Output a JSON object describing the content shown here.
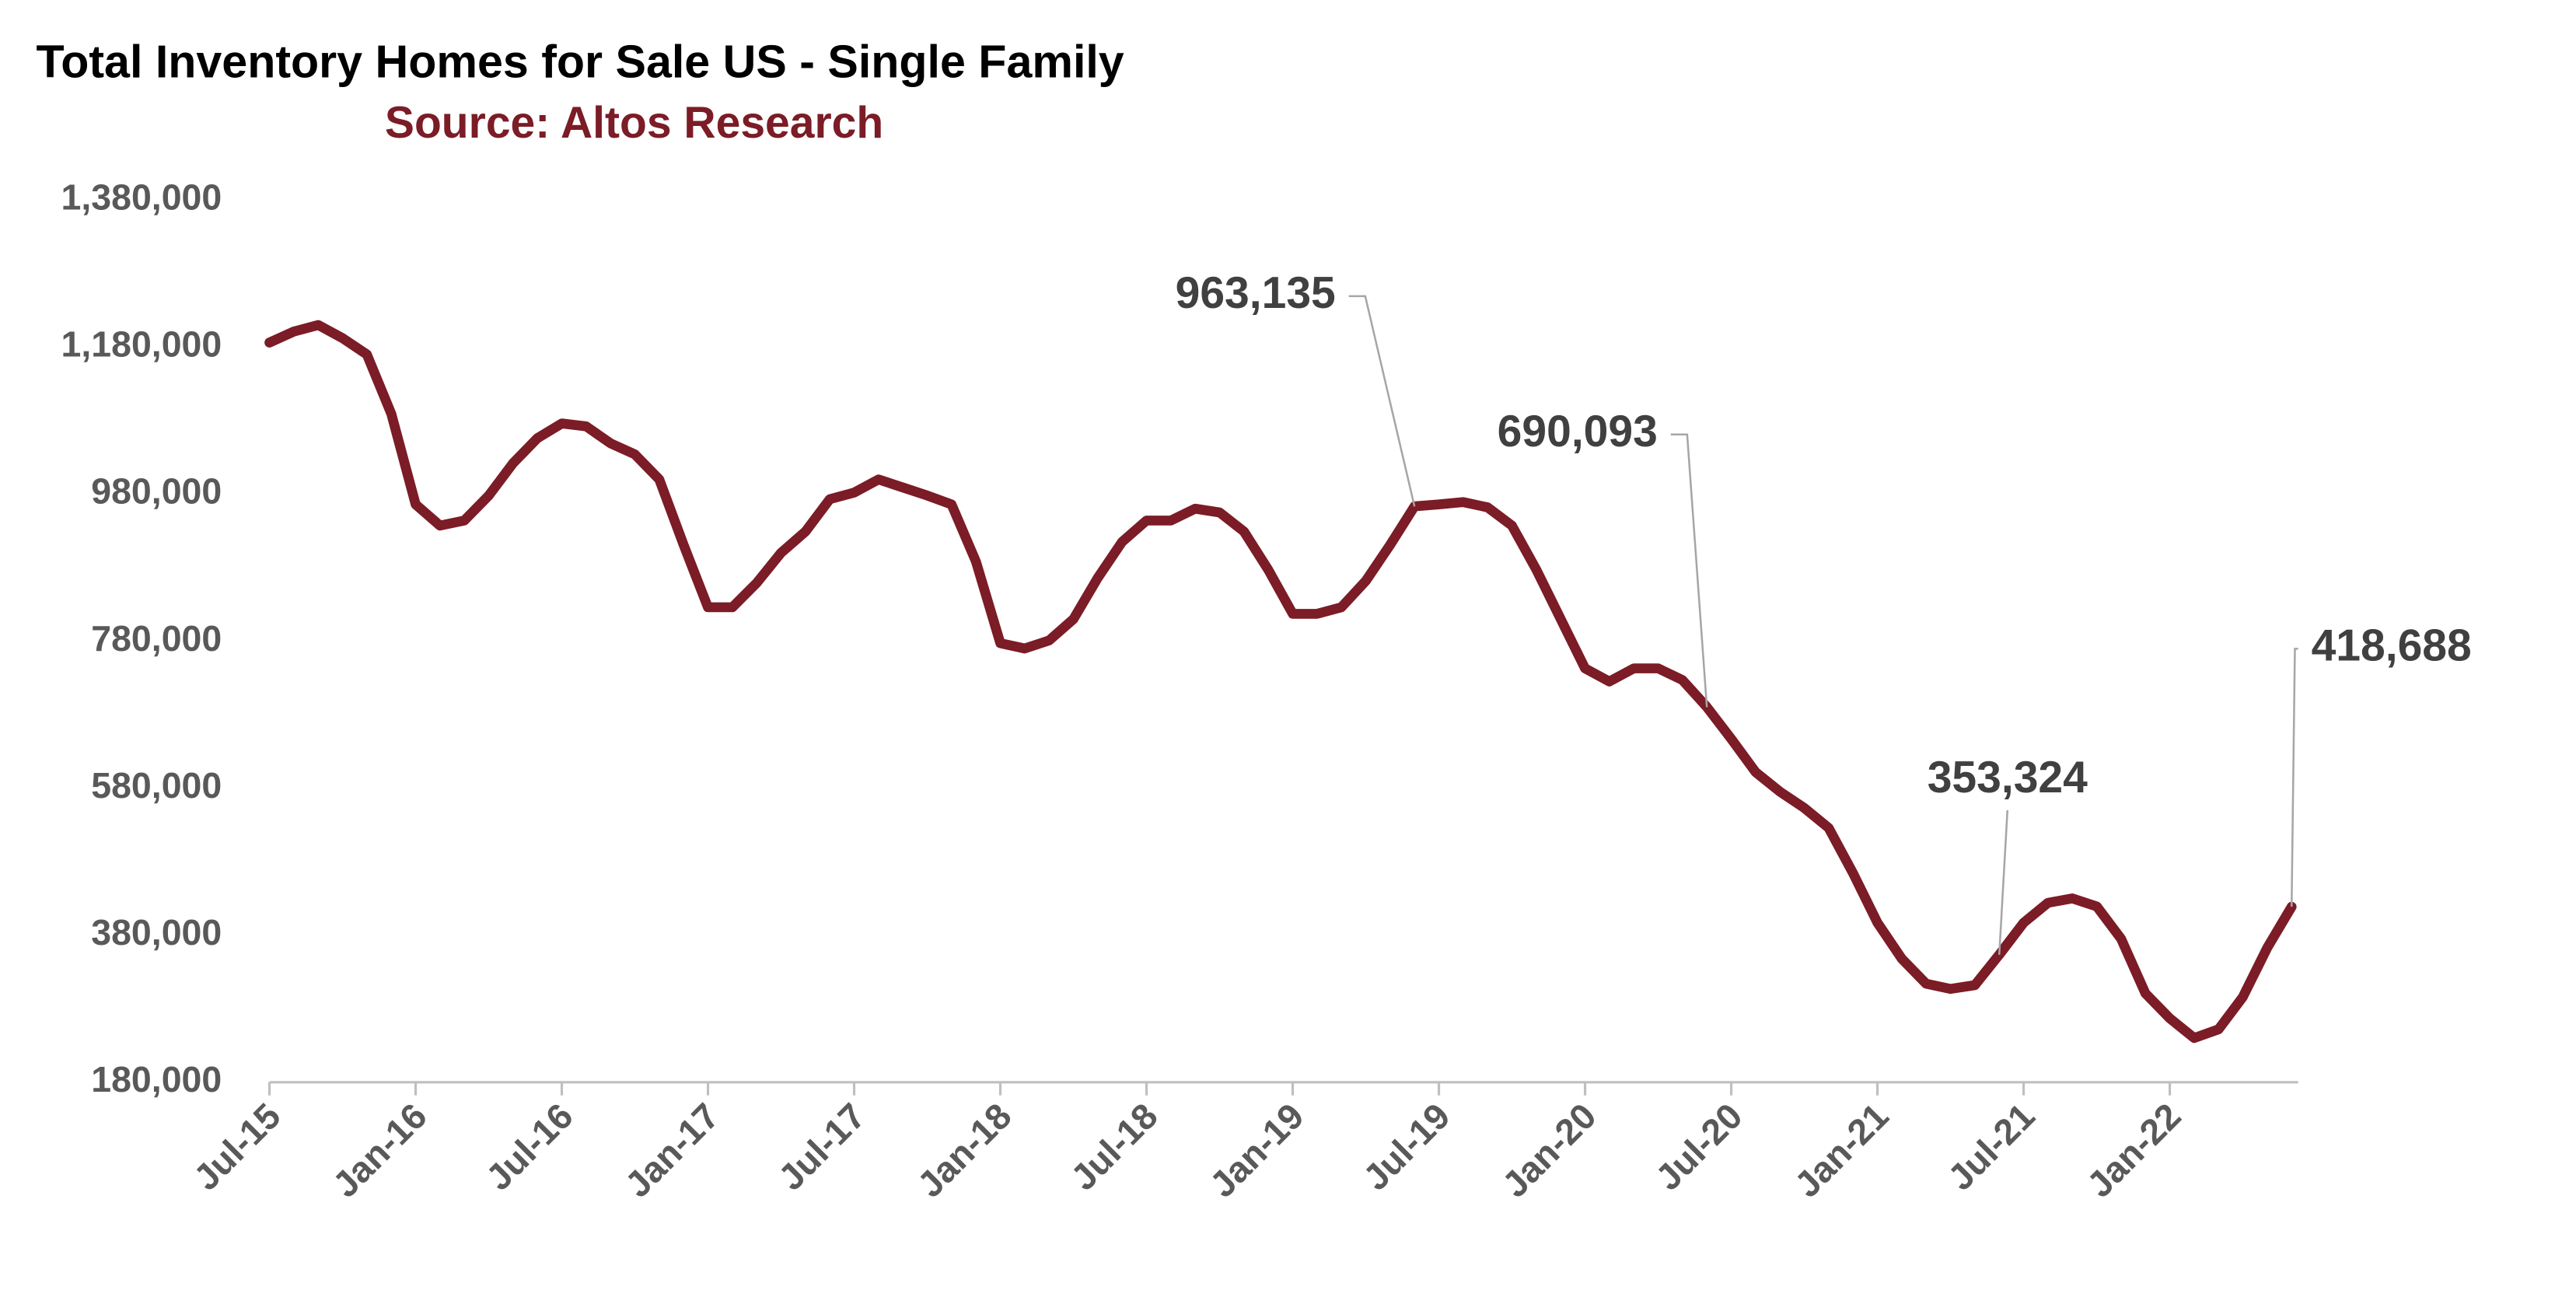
{
  "chart_data": {
    "type": "line",
    "title": "Total Inventory Homes for Sale US - Single Family",
    "subtitle": "Source: Altos Research",
    "categories": [
      "Jul-15",
      null,
      null,
      null,
      null,
      null,
      "Jan-16",
      null,
      null,
      null,
      null,
      null,
      "Jul-16",
      null,
      null,
      null,
      null,
      null,
      "Jan-17",
      null,
      null,
      null,
      null,
      null,
      "Jul-17",
      null,
      null,
      null,
      null,
      null,
      "Jan-18",
      null,
      null,
      null,
      null,
      null,
      "Jul-18",
      null,
      null,
      null,
      null,
      null,
      "Jan-19",
      null,
      null,
      null,
      null,
      null,
      "Jul-19",
      null,
      null,
      null,
      null,
      null,
      "Jan-20",
      null,
      null,
      null,
      null,
      null,
      "Jul-20",
      null,
      null,
      null,
      null,
      null,
      "Jan-21",
      null,
      null,
      null,
      null,
      null,
      "Jul-21",
      null,
      null,
      null,
      null,
      null,
      "Jan-22",
      null,
      null,
      null,
      null,
      null
    ],
    "series": [
      {
        "name": "Total Inventory",
        "color": "#7b1c26",
        "values": [
          1186000,
          1201000,
          1210000,
          1192000,
          1170000,
          1089000,
          966000,
          937000,
          944000,
          978000,
          1022000,
          1056000,
          1076000,
          1072000,
          1049000,
          1034000,
          1000000,
          911000,
          826000,
          826000,
          859000,
          900000,
          929000,
          973000,
          982000,
          1000000,
          989000,
          978000,
          966000,
          888000,
          777000,
          770000,
          781000,
          810000,
          866000,
          915000,
          944000,
          944000,
          960000,
          955000,
          929000,
          877000,
          817000,
          817000,
          826000,
          862000,
          911000,
          963135,
          966000,
          969000,
          962000,
          937000,
          877000,
          810000,
          743000,
          725000,
          743000,
          743000,
          727000,
          690093,
          647000,
          602000,
          575000,
          553000,
          526000,
          464000,
          397000,
          348000,
          314000,
          307000,
          312000,
          353324,
          397000,
          424000,
          430000,
          419000,
          375000,
          301000,
          267000,
          240000,
          252000,
          296000,
          363000,
          418688
        ],
        "value_labels": [
          null,
          null,
          null,
          null,
          null,
          null,
          null,
          null,
          null,
          null,
          null,
          null,
          null,
          null,
          null,
          null,
          null,
          null,
          null,
          null,
          null,
          null,
          null,
          null,
          null,
          null,
          null,
          null,
          null,
          null,
          null,
          null,
          null,
          null,
          null,
          null,
          null,
          null,
          null,
          null,
          null,
          null,
          null,
          null,
          null,
          null,
          null,
          "963,135",
          null,
          null,
          null,
          null,
          null,
          null,
          null,
          null,
          null,
          null,
          null,
          "690,093",
          null,
          null,
          null,
          null,
          null,
          null,
          null,
          null,
          null,
          null,
          null,
          "353,324",
          null,
          null,
          null,
          null,
          null,
          null,
          null,
          null,
          null,
          null,
          null,
          "418,688"
        ]
      }
    ],
    "ylim": [
      180000,
      1380000
    ],
    "yticks": [
      {
        "value": 180000,
        "label": "180,000"
      },
      {
        "value": 380000,
        "label": "380,000"
      },
      {
        "value": 580000,
        "label": "580,000"
      },
      {
        "value": 780000,
        "label": "780,000"
      },
      {
        "value": 980000,
        "label": "980,000"
      },
      {
        "value": 1180000,
        "label": "1,180,000"
      },
      {
        "value": 1380000,
        "label": "1,380,000"
      }
    ],
    "grid": false
  }
}
